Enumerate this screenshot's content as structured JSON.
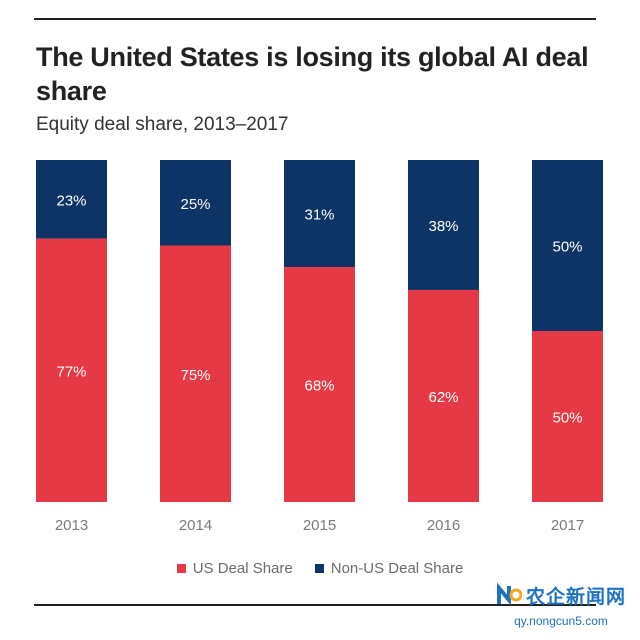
{
  "colors": {
    "us": "#e63946",
    "non_us": "#0d3464",
    "text_light": "#ffffff",
    "axis_label": "#7a7a7a"
  },
  "chart_data": {
    "type": "bar",
    "stacked": true,
    "title": "The United States is losing its global AI deal share",
    "subtitle": "Equity deal share, 2013–2017",
    "categories": [
      "2013",
      "2014",
      "2015",
      "2016",
      "2017"
    ],
    "series": [
      {
        "name": "US Deal Share",
        "values": [
          77,
          75,
          68,
          62,
          50
        ]
      },
      {
        "name": "Non-US Deal Share",
        "values": [
          23,
          25,
          31,
          38,
          50
        ]
      }
    ],
    "value_labels": {
      "us": [
        "77%",
        "75%",
        "68%",
        "62%",
        "50%"
      ],
      "non_us": [
        "23%",
        "25%",
        "31%",
        "38%",
        "50%"
      ]
    },
    "xlabel": "",
    "ylabel": "",
    "ylim": [
      0,
      100
    ],
    "legend": "bottom-center"
  },
  "legend": {
    "us_label": "US Deal Share",
    "non_us_label": "Non-US Deal Share"
  },
  "watermark": {
    "text": "农企新闻网",
    "url": "qy.nongcun5.com"
  }
}
